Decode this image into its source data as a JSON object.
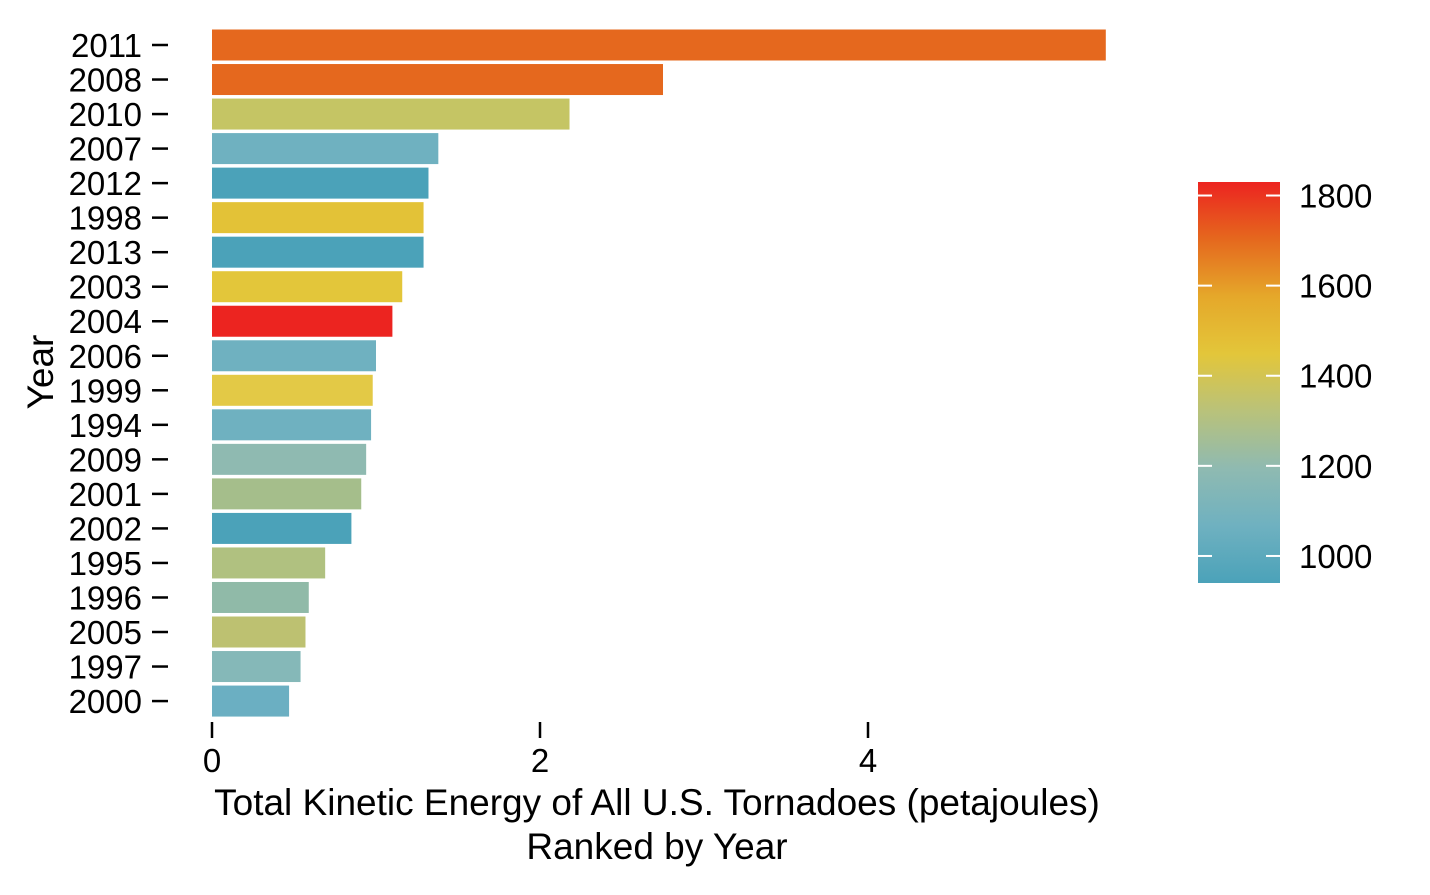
{
  "chart_data": {
    "type": "bar",
    "orientation": "horizontal",
    "categories": [
      "2011",
      "2008",
      "2010",
      "2007",
      "2012",
      "1998",
      "2013",
      "2003",
      "2004",
      "2006",
      "1999",
      "1994",
      "2009",
      "2001",
      "2002",
      "1995",
      "1996",
      "2005",
      "1997",
      "2000"
    ],
    "values": [
      5.45,
      2.75,
      2.18,
      1.38,
      1.32,
      1.29,
      1.29,
      1.16,
      1.1,
      1.0,
      0.98,
      0.97,
      0.94,
      0.91,
      0.85,
      0.69,
      0.59,
      0.57,
      0.54,
      0.47
    ],
    "colors": [
      "#E5681E",
      "#E5681E",
      "#C5C564",
      "#6FB1C0",
      "#4BA2B9",
      "#E3C237",
      "#4BA2B9",
      "#E3C63A",
      "#EC2420",
      "#6FB1C0",
      "#E3C946",
      "#6FB1C0",
      "#8FBAB1",
      "#A5BE8B",
      "#4BA2B9",
      "#B0C180",
      "#90BAA8",
      "#BDC171",
      "#85B8B8",
      "#6BAFC2"
    ],
    "xlabel": "Total Kinetic Energy of All U.S. Tornadoes (petajoules)",
    "xlabel_line2": "Ranked by Year",
    "ylabel": "Year",
    "xlim": [
      0,
      6
    ],
    "xticks": [
      0,
      2,
      4
    ],
    "grid": false,
    "legend": {
      "placement": "right",
      "type": "colorbar",
      "range": [
        940,
        1830
      ],
      "ticks": [
        1000,
        1200,
        1400,
        1600,
        1800
      ],
      "gradient": [
        "#4BA2B9",
        "#6FB1C0",
        "#8FBAB1",
        "#B9C27A",
        "#E3C63A",
        "#E5A82A",
        "#E5681E",
        "#EC2420"
      ]
    }
  }
}
